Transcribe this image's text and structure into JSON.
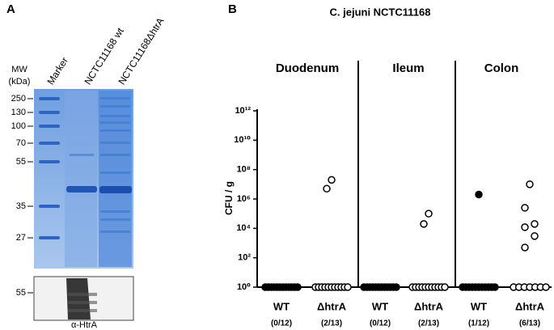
{
  "panel_a": {
    "label": "A",
    "lanes": [
      "Marker",
      "NCTC11168 wt",
      "NCTC11168ΔhtrA"
    ],
    "mw_title": [
      "MW",
      "(kDa)"
    ],
    "mw_markers": [
      250,
      130,
      100,
      70,
      55,
      35,
      27
    ],
    "blot_marker": 55,
    "blot_label": "α-HtrA"
  },
  "panel_b": {
    "label": "B"
  },
  "chart_data": {
    "type": "scatter",
    "title": "C. jejuni NCTC11168",
    "y_label": "CFU / g",
    "groups": [
      "Duodenum",
      "Ileum",
      "Colon"
    ],
    "categories": [
      "WT",
      "ΔhtrA",
      "WT",
      "ΔhtrA",
      "WT",
      "ΔhtrA"
    ],
    "counts": [
      "(0/12)",
      "(2/13)",
      "(0/12)",
      "(2/13)",
      "(1/12)",
      "(6/13)"
    ],
    "filled": [
      true,
      false,
      true,
      false,
      true,
      false
    ],
    "values": [
      [
        1,
        1,
        1,
        1,
        1,
        1,
        1,
        1,
        1,
        1,
        1,
        1
      ],
      [
        20000000,
        5000000,
        1,
        1,
        1,
        1,
        1,
        1,
        1,
        1,
        1,
        1,
        1
      ],
      [
        1,
        1,
        1,
        1,
        1,
        1,
        1,
        1,
        1,
        1,
        1,
        1
      ],
      [
        100000,
        20000,
        1,
        1,
        1,
        1,
        1,
        1,
        1,
        1,
        1,
        1,
        1
      ],
      [
        2000000,
        1,
        1,
        1,
        1,
        1,
        1,
        1,
        1,
        1,
        1,
        1
      ],
      [
        10000000,
        250000,
        20000,
        12000,
        3000,
        500,
        1,
        1,
        1,
        1,
        1,
        1,
        1
      ]
    ],
    "log_y": true,
    "ylim": [
      1,
      1000000000000
    ],
    "yticks": [
      {
        "value": 1,
        "label": "10⁰"
      },
      {
        "value": 100,
        "label": "10²"
      },
      {
        "value": 10000,
        "label": "10⁴"
      },
      {
        "value": 1000000,
        "label": "10⁶"
      },
      {
        "value": 100000000,
        "label": "10⁸"
      },
      {
        "value": 10000000000,
        "label": "10¹⁰"
      },
      {
        "value": 1000000000000,
        "label": "10¹²"
      }
    ]
  }
}
